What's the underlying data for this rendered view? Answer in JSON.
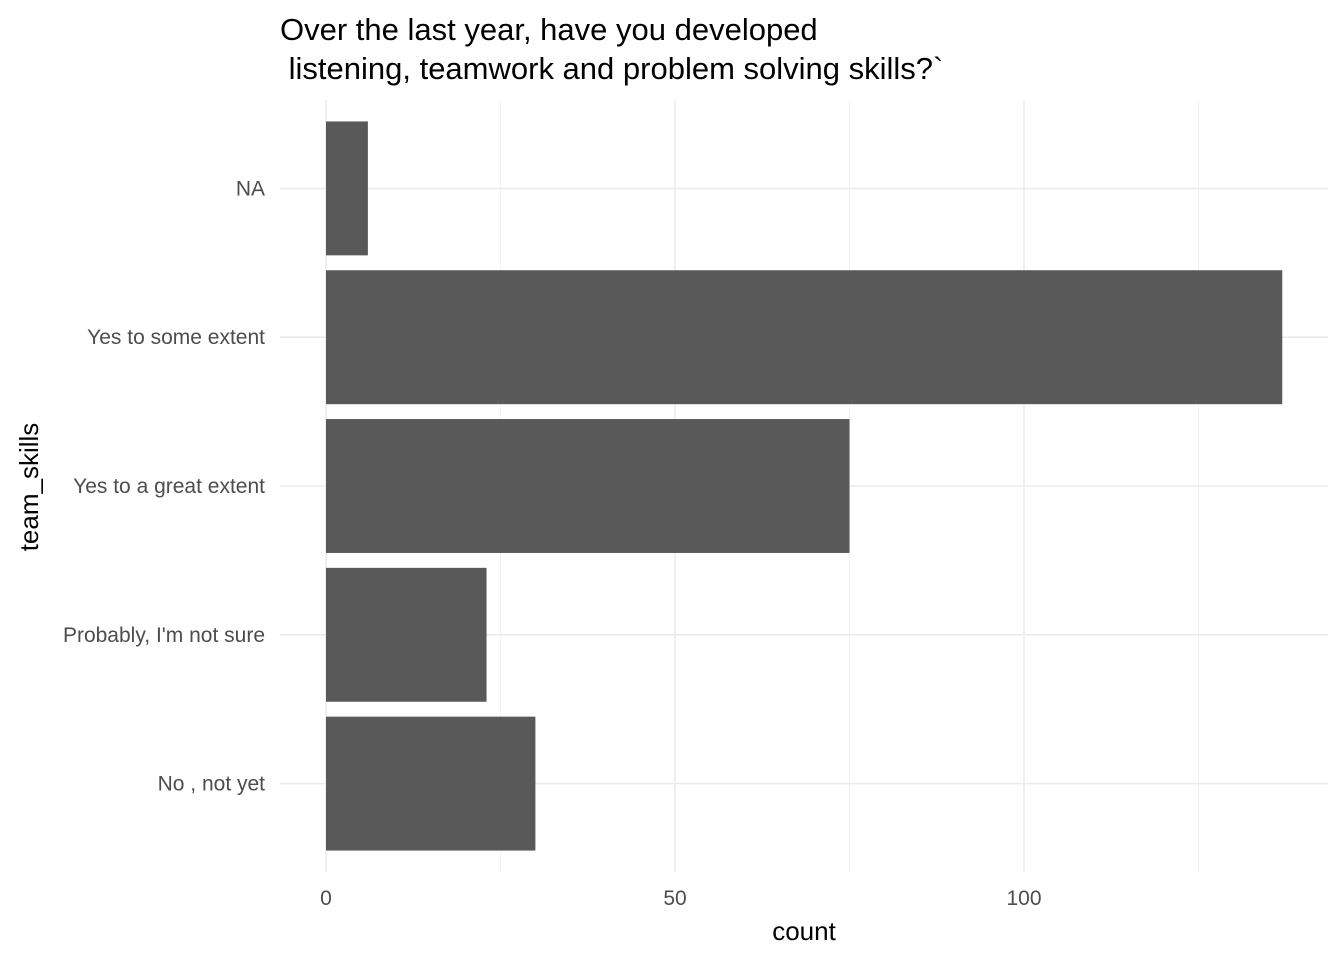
{
  "chart_data": {
    "type": "bar",
    "orientation": "horizontal",
    "title_lines": [
      "Over the last year, have you developed",
      " listening, teamwork and problem solving skills?`"
    ],
    "xlabel": "count",
    "ylabel": "team_skills",
    "categories": [
      "No , not yet",
      "Probably, I'm not sure",
      "Yes to a great extent",
      "Yes to some extent",
      "NA"
    ],
    "values": [
      30,
      23,
      75,
      137,
      6
    ],
    "xlim": [
      0,
      144
    ],
    "x_ticks": [
      0,
      50,
      100
    ],
    "x_tick_labels": [
      "0",
      "50",
      "100"
    ],
    "grid": true,
    "colors": {
      "bar": "#595959",
      "grid": "#ebebeb",
      "text": "#4d4d4d"
    }
  }
}
